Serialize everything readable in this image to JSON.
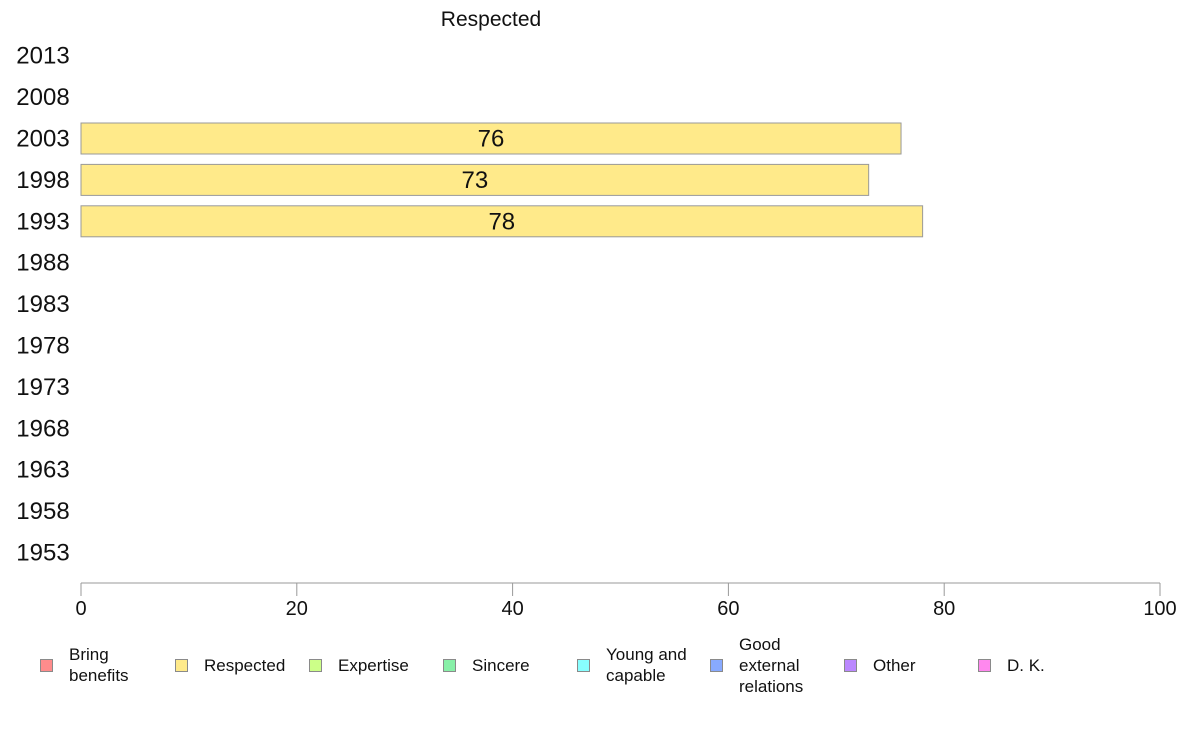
{
  "chart_data": {
    "type": "bar",
    "orientation": "horizontal",
    "title": "Respected",
    "categories": [
      "2013",
      "2008",
      "2003",
      "1998",
      "1993",
      "1988",
      "1983",
      "1978",
      "1973",
      "1968",
      "1963",
      "1958",
      "1953"
    ],
    "series": [
      {
        "name": "Respected",
        "color": "#FFEA8A",
        "values": [
          null,
          null,
          76,
          73,
          78,
          null,
          null,
          null,
          null,
          null,
          null,
          null,
          null
        ]
      }
    ],
    "data_labels": [
      "",
      "",
      "76",
      "73",
      "78",
      "",
      "",
      "",
      "",
      "",
      "",
      "",
      ""
    ],
    "xlim": [
      0,
      100
    ],
    "xticks": [
      0,
      20,
      40,
      60,
      80,
      100
    ],
    "xlabel": "",
    "ylabel": "",
    "grid": false,
    "legend_position": "bottom"
  },
  "legend": [
    {
      "label": "Bring\nbenefits",
      "color": "#FF8C8C"
    },
    {
      "label": "Respected",
      "color": "#FFEA8A"
    },
    {
      "label": "Expertise",
      "color": "#CCFF88"
    },
    {
      "label": "Sincere",
      "color": "#88F0A8"
    },
    {
      "label": "Young and\ncapable",
      "color": "#88FFFF"
    },
    {
      "label": "Good\nexternal\nrelations",
      "color": "#88AAFF"
    },
    {
      "label": "Other",
      "color": "#BB88FF"
    },
    {
      "label": "D. K.",
      "color": "#FF88EE"
    }
  ]
}
